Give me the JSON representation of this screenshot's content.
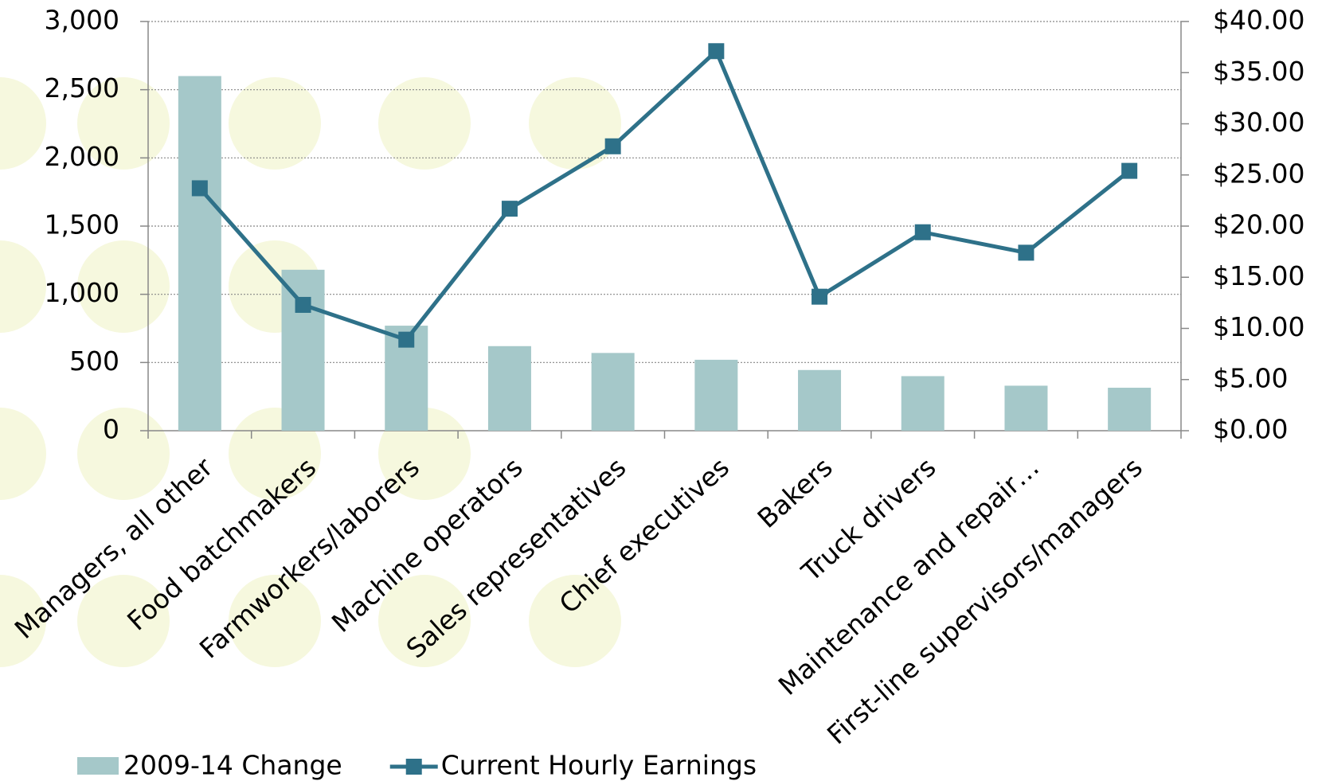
{
  "chart_data": {
    "type": "bar_line",
    "categories": [
      "Managers, all other",
      "Food batchmakers",
      "Farmworkers/laborers",
      "Machine operators",
      "Sales representatives",
      "Chief executives",
      "Bakers",
      "Truck drivers",
      "Maintenance and repair…",
      "First-line supervisors/managers"
    ],
    "series": [
      {
        "name": "2009-14 Change",
        "type": "bar",
        "color": "#a5c8c9",
        "values": [
          2600,
          1180,
          770,
          620,
          570,
          520,
          445,
          400,
          330,
          315
        ]
      },
      {
        "name": "Current Hourly Earnings",
        "type": "line",
        "axis": "y2",
        "color": "#2e7189",
        "values": [
          23.7,
          12.3,
          8.9,
          21.7,
          27.8,
          37.1,
          13.1,
          19.4,
          17.4,
          25.4
        ]
      }
    ],
    "ylim": [
      0,
      3000
    ],
    "yticks": [
      0,
      500,
      {
        "value": 1000,
        "label": "1,000"
      },
      {
        "value": 1500,
        "label": "1,500"
      },
      {
        "value": 2000,
        "label": "2,000"
      },
      {
        "value": 2500,
        "label": "2,500"
      },
      {
        "value": 3000,
        "label": "3,000"
      }
    ],
    "y2lim": [
      0,
      40
    ],
    "y2ticks": [
      {
        "value": 0,
        "label": "$0.00"
      },
      {
        "value": 5,
        "label": "$5.00"
      },
      {
        "value": 10,
        "label": "$10.00"
      },
      {
        "value": 15,
        "label": "$15.00"
      },
      {
        "value": 20,
        "label": "$20.00"
      },
      {
        "value": 25,
        "label": "$25.00"
      },
      {
        "value": 30,
        "label": "$30.00"
      },
      {
        "value": 35,
        "label": "$35.00"
      },
      {
        "value": 40,
        "label": "$40.00"
      }
    ],
    "grid": true,
    "legend": "bottom"
  }
}
